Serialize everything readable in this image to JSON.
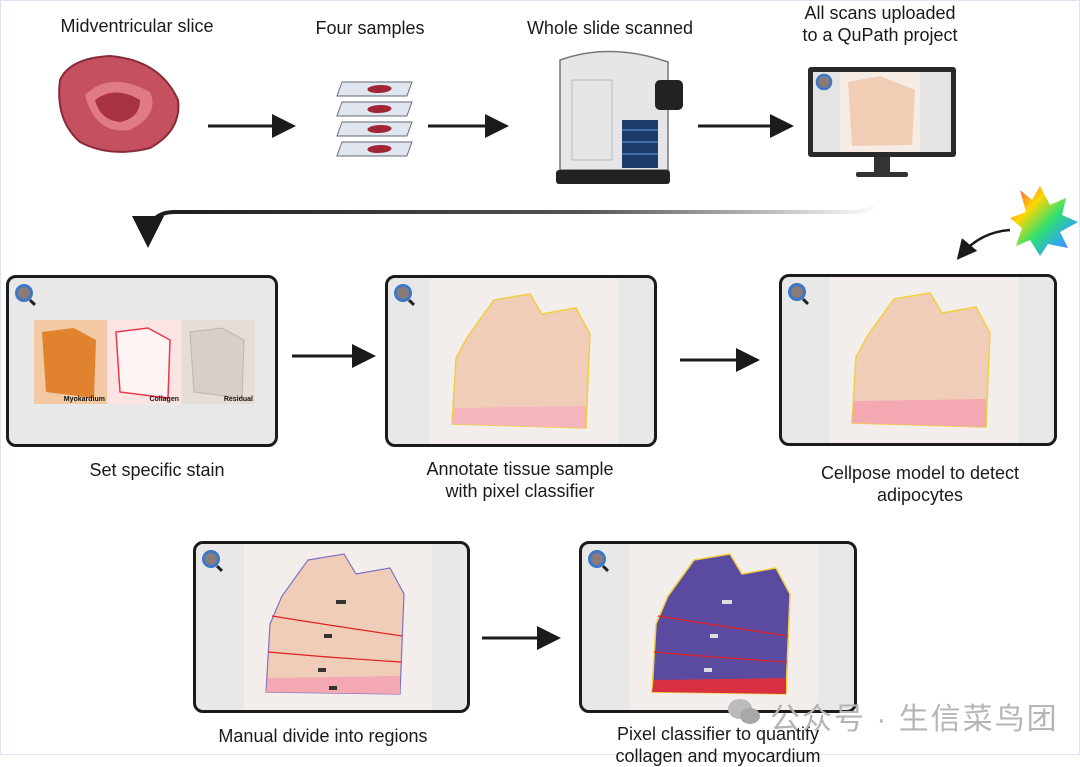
{
  "steps": {
    "slice": "Midventricular slice",
    "samples": "Four samples",
    "scan": "Whole slide scanned",
    "upload_line1": "All scans uploaded",
    "upload_line2": "to a QuPath project"
  },
  "panels": {
    "stain": {
      "caption": "Set specific stain",
      "channels": [
        "Myokardium",
        "Collagen",
        "Residual"
      ]
    },
    "annotate": {
      "caption_line1": "Annotate tissue sample",
      "caption_line2": "with pixel classifier"
    },
    "cellpose": {
      "caption_line1": "Cellpose model to detect",
      "caption_line2": "adipocytes"
    },
    "divide": {
      "caption": "Manual divide into regions"
    },
    "quantify": {
      "caption_line1": "Pixel classifier to quantify",
      "caption_line2": "collagen and myocardium"
    }
  },
  "watermark": "公众号 · 生信菜鸟团",
  "colors": {
    "tissue": "#b84a55",
    "myocardium": "#e0822e",
    "collagen": "#e8394a",
    "quantify": "#5a4aa0",
    "region_line": "#e02020"
  }
}
